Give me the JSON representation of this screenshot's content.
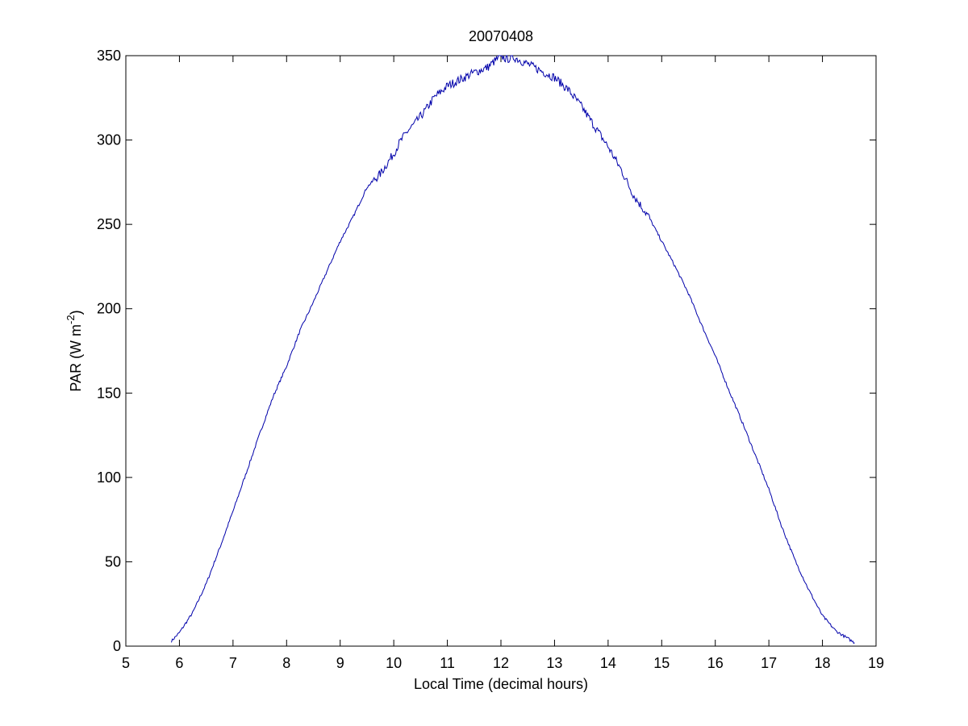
{
  "chart_data": {
    "type": "line",
    "title": "20070408",
    "xlabel": "Local Time (decimal hours)",
    "ylabel": {
      "prefix": "PAR (W m",
      "superscript": "-2",
      "suffix": ")"
    },
    "xlim": [
      5,
      19
    ],
    "ylim": [
      0,
      350
    ],
    "xticks": [
      5,
      6,
      7,
      8,
      9,
      10,
      11,
      12,
      13,
      14,
      15,
      16,
      17,
      18,
      19
    ],
    "yticks": [
      0,
      50,
      100,
      150,
      200,
      250,
      300,
      350
    ],
    "grid": false,
    "legend": "none",
    "line_color": "#0000aa",
    "series": [
      {
        "x": [
          5.85,
          6.0,
          6.25,
          6.5,
          6.75,
          7.0,
          7.25,
          7.5,
          7.75,
          8.0,
          8.25,
          8.5,
          8.75,
          9.0,
          9.25,
          9.5,
          9.75,
          10.0,
          10.1,
          10.25,
          10.4,
          10.6,
          10.75,
          11.0,
          11.25,
          11.5,
          11.75,
          12.0,
          12.1,
          12.25,
          12.5,
          12.75,
          13.0,
          13.25,
          13.5,
          13.75,
          14.0,
          14.25,
          14.4,
          14.5,
          14.75,
          15.0,
          15.25,
          15.5,
          15.75,
          16.0,
          16.25,
          16.5,
          16.75,
          17.0,
          17.25,
          17.5,
          17.75,
          18.0,
          18.25,
          18.5,
          18.6
        ],
        "y": [
          3,
          8,
          20,
          37,
          58,
          80,
          103,
          126,
          148,
          166,
          187,
          204,
          222,
          240,
          255,
          272,
          280,
          292,
          298,
          305,
          310,
          318,
          325,
          332,
          336,
          340,
          343,
          350,
          348,
          349,
          345,
          341,
          337,
          330,
          320,
          308,
          296,
          282,
          272,
          266,
          255,
          240,
          225,
          209,
          190,
          172,
          152,
          133,
          113,
          93,
          70,
          50,
          33,
          18,
          9,
          4,
          2
        ]
      }
    ]
  }
}
